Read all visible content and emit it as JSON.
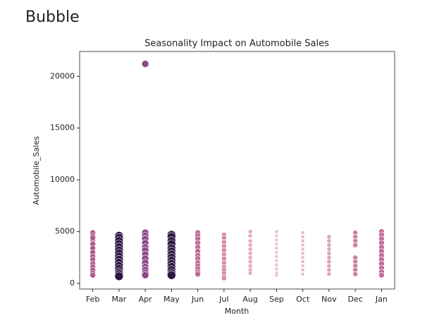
{
  "header": {
    "title": "Bubble"
  },
  "chart_data": {
    "type": "scatter",
    "title": "Seasonality Impact on Automobile Sales",
    "x_label": "Month",
    "y_label": "Automobile_Sales",
    "categories": [
      "Feb",
      "Mar",
      "Apr",
      "May",
      "Jun",
      "Jul",
      "Aug",
      "Sep",
      "Oct",
      "Nov",
      "Dec",
      "Jan"
    ],
    "values": [
      [
        4900,
        4600,
        4200,
        3800,
        3400,
        3000,
        2600,
        2300,
        1900,
        1600,
        1300,
        1000,
        800,
        4400
      ],
      [
        4600,
        4400,
        4100,
        3800,
        3500,
        3200,
        2900,
        2600,
        2300,
        2000,
        1700,
        1400,
        1100,
        900,
        700
      ],
      [
        21200,
        4900,
        4600,
        4300,
        3900,
        3500,
        3200,
        2800,
        2400,
        2000,
        1600,
        1300,
        1000,
        800
      ],
      [
        4700,
        4500,
        4100,
        3800,
        3400,
        3100,
        2800,
        2500,
        2200,
        1900,
        1600,
        1300,
        1000,
        800
      ],
      [
        4900,
        4600,
        4300,
        3900,
        3500,
        3100,
        2700,
        2400,
        2000,
        1700,
        1400,
        1100,
        900
      ],
      [
        4700,
        4400,
        4000,
        3600,
        3200,
        2800,
        2400,
        2000,
        1600,
        1300,
        1000,
        700,
        500
      ],
      [
        5000,
        4600,
        4100,
        3700,
        3300,
        2900,
        2500,
        2100,
        1700,
        1300,
        1000
      ],
      [
        5000,
        4600,
        4200,
        3800,
        3400,
        3000,
        2600,
        2200,
        1800,
        1400,
        1000,
        800
      ],
      [
        4900,
        4500,
        4100,
        3700,
        3300,
        2900,
        2500,
        2100,
        1700,
        1300,
        900
      ],
      [
        4500,
        4100,
        3700,
        3300,
        2900,
        2500,
        2100,
        1700,
        1300,
        900
      ],
      [
        4900,
        4500,
        4100,
        3700,
        2500,
        2100,
        1700,
        1300,
        900
      ],
      [
        5000,
        4700,
        4300,
        3900,
        3500,
        3100,
        2700,
        2300,
        1900,
        1500,
        1100,
        800
      ]
    ],
    "colors": [
      "#b05a90",
      "#2b1640",
      "#8e4a85",
      "#2d1842",
      "#c06b9a",
      "#d688ac",
      "#e4a9c4",
      "#ebc0d1",
      "#e8b8cb",
      "#dda0bd",
      "#cf7fa6",
      "#c46ea0"
    ],
    "sizes": [
      4,
      6,
      5,
      6,
      4,
      3.5,
      3,
      2.5,
      2.5,
      3,
      3.5,
      4
    ],
    "ylim": [
      -540,
      22400
    ],
    "yticks": [
      0,
      5000,
      10000,
      15000,
      20000
    ]
  }
}
